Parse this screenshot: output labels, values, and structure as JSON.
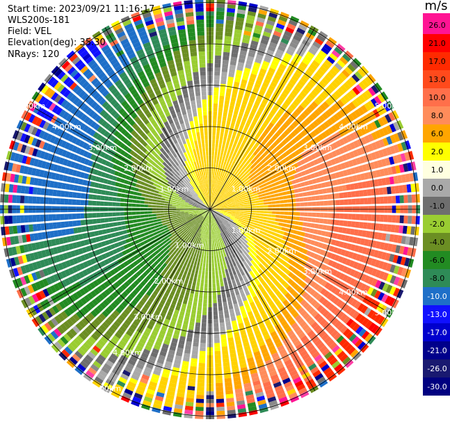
{
  "header": {
    "start_time": "Start time: 2023/09/21 11:16:17",
    "instrument": "WLS200s-181",
    "field": "Field: VEL",
    "elevation": "Elevation(deg): 35.30",
    "nrays": "NRays: 120"
  },
  "colorbar": {
    "unit": "m/s",
    "labels": [
      "26.0",
      "21.0",
      "17.0",
      "13.0",
      "10.0",
      "8.0",
      "6.0",
      "2.0",
      "1.0",
      "0.0",
      "-1.0",
      "-2.0",
      "-4.0",
      "-6.0",
      "-8.0",
      "-10.0",
      "-13.0",
      "-17.0",
      "-21.0",
      "-26.0",
      "-30.0"
    ],
    "colors": [
      "#ff1493",
      "#ff1493",
      "#ff0000",
      "#ff2a00",
      "#ff4a1c",
      "#ff6f4a",
      "#ff8c5a",
      "#ffa500",
      "#ffff00",
      "#ffffe0",
      "#a9a9a9",
      "#6e6e6e",
      "#9acd32",
      "#6b8e23",
      "#228b22",
      "#2e8b57",
      "#1e6fc8",
      "#1010ff",
      "#0000cd",
      "#00008b",
      "#191970",
      "#000080"
    ]
  },
  "chart_data": {
    "type": "ppi",
    "field": "VEL",
    "units": "m/s",
    "nrays": 120,
    "elevation_deg": 35.3,
    "range_rings_km": [
      1.0,
      2.0,
      3.0,
      4.0,
      5.0
    ],
    "range_labels": [
      "1.00km",
      "2.00km",
      "3.00km",
      "4.00km",
      "5.00km"
    ],
    "value_range": [
      -30.0,
      30.0
    ]
  }
}
